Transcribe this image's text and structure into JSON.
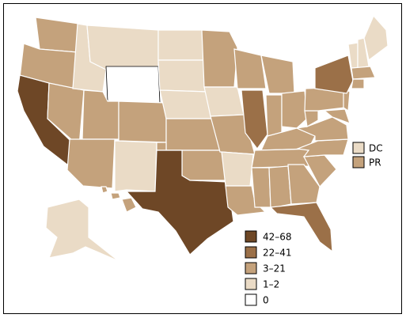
{
  "legend": [
    {
      "label": "42–68",
      "color": "#6e4726"
    },
    {
      "label": "22–41",
      "color": "#9b7048"
    },
    {
      "label": "3–21",
      "color": "#c4a27c"
    },
    {
      "label": "1–2",
      "color": "#eadbc6"
    },
    {
      "label": "0",
      "color": "#ffffff"
    }
  ],
  "territories": [
    {
      "label": "DC",
      "color": "#eadbc6"
    },
    {
      "label": "PR",
      "color": "#c4a27c"
    }
  ]
}
